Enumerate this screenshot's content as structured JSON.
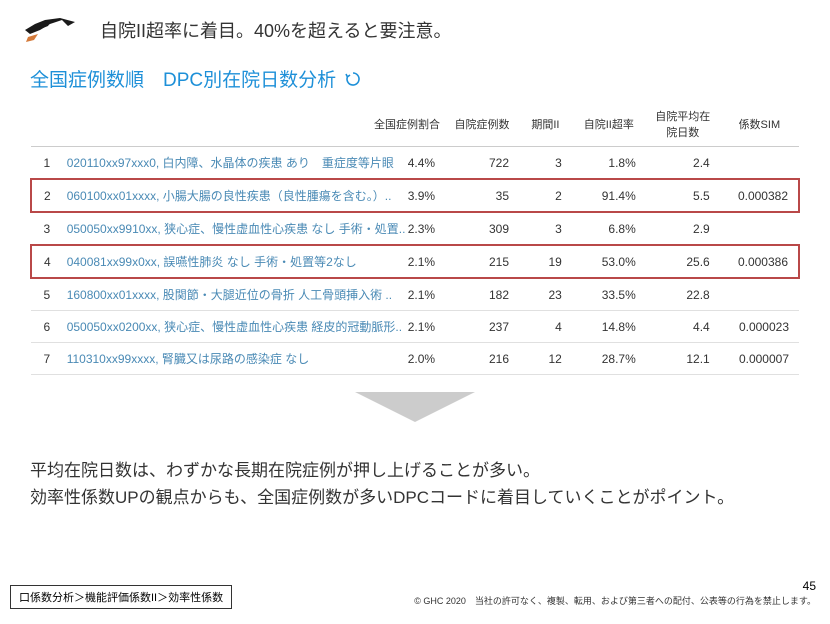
{
  "header": {
    "title": "自院II超率に着目。40%を超えると要注意。"
  },
  "subtitle": "全国症例数順　DPC別在院日数分析",
  "columns": {
    "c0": "",
    "c1": "",
    "c2": "全国症例割合",
    "c3": "自院症例数",
    "c4": "期間II",
    "c5": "自院II超率",
    "c6": "自院平均在院日数",
    "c7": "係数SIM"
  },
  "rows": [
    {
      "idx": "1",
      "name": "020110xx97xxx0, 白内障、水晶体の疾患 あり　重症度等片眼",
      "pct": "4.4%",
      "cases": "722",
      "period": "3",
      "over": "1.8%",
      "avg": "2.4",
      "sim": "",
      "hl": false
    },
    {
      "idx": "2",
      "name": "060100xx01xxxx, 小腸大腸の良性疾患（良性腫瘍を含む。）..",
      "pct": "3.9%",
      "cases": "35",
      "period": "2",
      "over": "91.4%",
      "avg": "5.5",
      "sim": "0.000382",
      "hl": true
    },
    {
      "idx": "3",
      "name": "050050xx9910xx, 狭心症、慢性虚血性心疾患 なし 手術・処置..",
      "pct": "2.3%",
      "cases": "309",
      "period": "3",
      "over": "6.8%",
      "avg": "2.9",
      "sim": "",
      "hl": false
    },
    {
      "idx": "4",
      "name": "040081xx99x0xx, 誤嚥性肺炎 なし 手術・処置等2なし",
      "pct": "2.1%",
      "cases": "215",
      "period": "19",
      "over": "53.0%",
      "avg": "25.6",
      "sim": "0.000386",
      "hl": true
    },
    {
      "idx": "5",
      "name": "160800xx01xxxx, 股関節・大腿近位の骨折 人工骨頭挿入術 ..",
      "pct": "2.1%",
      "cases": "182",
      "period": "23",
      "over": "33.5%",
      "avg": "22.8",
      "sim": "",
      "hl": false
    },
    {
      "idx": "6",
      "name": "050050xx0200xx, 狭心症、慢性虚血性心疾患 経皮的冠動脈形..",
      "pct": "2.1%",
      "cases": "237",
      "period": "4",
      "over": "14.8%",
      "avg": "4.4",
      "sim": "0.000023",
      "hl": false
    },
    {
      "idx": "7",
      "name": "110310xx99xxxx, 腎臓又は尿路の感染症 なし",
      "pct": "2.0%",
      "cases": "216",
      "period": "12",
      "over": "28.7%",
      "avg": "12.1",
      "sim": "0.000007",
      "hl": false
    }
  ],
  "summary": {
    "line1": "平均在院日数は、わずかな長期在院症例が押し上げることが多い。",
    "line2": "効率性係数UPの観点からも、全国症例数が多いDPCコードに着目していくことがポイント。"
  },
  "breadcrumb": "口係数分析＞機能評価係数II＞効率性係数",
  "page_number": "45",
  "copyright": "© GHC 2020　当社の許可なく、複製、転用、および第三者への配付、公表等の行為を禁止します。",
  "colors": {
    "subtitle": "#1e90d8",
    "highlight_border": "#b94848",
    "arrow": "#cccccc",
    "logo": "#1a1a1a",
    "logo_accent": "#d47a3a"
  }
}
